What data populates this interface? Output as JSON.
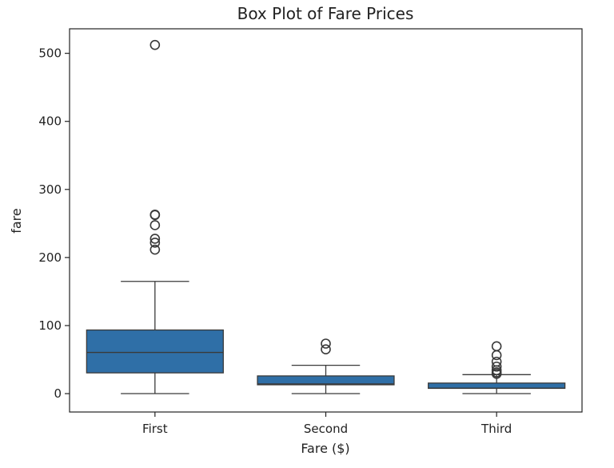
{
  "chart_data": {
    "type": "box",
    "title": "Box Plot of Fare Prices",
    "xlabel": "Fare ($)",
    "ylabel": "fare",
    "ylim": [
      -27,
      536
    ],
    "yticks": [
      0,
      100,
      200,
      300,
      400,
      500
    ],
    "categories": [
      "First",
      "Second",
      "Third"
    ],
    "box_color": "#2f6fa7",
    "line_color": "#3a3a3a",
    "grid": false,
    "legend": "none",
    "boxes": [
      {
        "name": "First",
        "whisker_low": 0,
        "q1": 30.5,
        "median": 60.5,
        "q3": 93.5,
        "whisker_high": 164.9,
        "outliers": [
          211.5,
          221.8,
          227.5,
          247.5,
          262.4,
          263,
          512.3
        ]
      },
      {
        "name": "Second",
        "whisker_low": 0,
        "q1": 13,
        "median": 14.3,
        "q3": 26,
        "whisker_high": 41.6,
        "outliers": [
          65,
          73.5
        ]
      },
      {
        "name": "Third",
        "whisker_low": 0,
        "q1": 7.75,
        "median": 8.05,
        "q3": 15.5,
        "whisker_high": 27.9,
        "outliers": [
          29.1,
          31.3,
          34.4,
          39.7,
          46.9,
          56.5,
          69.6
        ]
      }
    ]
  }
}
